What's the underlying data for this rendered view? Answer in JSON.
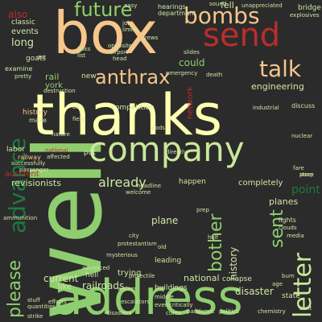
{
  "colors": {
    "background": "#2b2b2b",
    "palette": [
      "#f6c68a",
      "#b92e2b",
      "#8fce6e",
      "#ffffb0",
      "#1e7a3e",
      "#f2a466",
      "#c9e89a",
      "#d0e6a5"
    ]
  },
  "words": [
    {
      "text": "thanks",
      "color": "#ffffb0",
      "size": 70
    },
    {
      "text": "well",
      "color": "#8fce6e",
      "size": 120
    },
    {
      "text": "box",
      "color": "#f6c68a",
      "size": 70
    },
    {
      "text": "address",
      "color": "#8fce6e",
      "size": 60
    },
    {
      "text": "company",
      "color": "#c9e89a",
      "size": 40
    },
    {
      "text": "send",
      "color": "#b92e2b",
      "size": 38
    },
    {
      "text": "bombs",
      "color": "#f6c68a",
      "size": 28
    },
    {
      "text": "future",
      "color": "#8fce6e",
      "size": 24
    },
    {
      "text": "anthrax",
      "color": "#f6c68a",
      "size": 24
    },
    {
      "text": "talk",
      "color": "#f6c68a",
      "size": 26
    },
    {
      "text": "advance",
      "color": "#1e7a3e",
      "size": 28
    },
    {
      "text": "letter",
      "color": "#c9e89a",
      "size": 30
    },
    {
      "text": "please",
      "color": "#8fce6e",
      "size": 22
    },
    {
      "text": "bother",
      "color": "#8fce6e",
      "size": 22
    },
    {
      "text": "sent",
      "color": "#8fce6e",
      "size": 22
    },
    {
      "text": "already",
      "color": "#d0e6a5",
      "size": 16
    },
    {
      "text": "point",
      "color": "#1e7a3e",
      "size": 14
    },
    {
      "text": "also",
      "color": "#b92e2b",
      "size": 12
    },
    {
      "text": "events",
      "color": "#d0e6a5",
      "size": 10
    },
    {
      "text": "long",
      "color": "#d0e6a5",
      "size": 13
    },
    {
      "text": "classic",
      "color": "#d0e6a5",
      "size": 9
    },
    {
      "text": "goats",
      "color": "#d0e6a5",
      "size": 9
    },
    {
      "text": "examine",
      "color": "#d0e6a5",
      "size": 8
    },
    {
      "text": "rail",
      "color": "#8fce6e",
      "size": 11
    },
    {
      "text": "york",
      "color": "#8fce6e",
      "size": 10
    },
    {
      "text": "make",
      "color": "#d0e6a5",
      "size": 8
    },
    {
      "text": "labor",
      "color": "#d0e6a5",
      "size": 9
    },
    {
      "text": "railway",
      "color": "#f6c68a",
      "size": 8
    },
    {
      "text": "accident",
      "color": "#b92e2b",
      "size": 10
    },
    {
      "text": "revisionists",
      "color": "#d0e6a5",
      "size": 11
    },
    {
      "text": "railroads",
      "color": "#d0e6a5",
      "size": 12
    },
    {
      "text": "current",
      "color": "#d0e6a5",
      "size": 12
    },
    {
      "text": "like",
      "color": "#d0e6a5",
      "size": 10
    },
    {
      "text": "plane",
      "color": "#d0e6a5",
      "size": 12
    },
    {
      "text": "history",
      "color": "#d0e6a5",
      "size": 12
    },
    {
      "text": "planes",
      "color": "#d0e6a5",
      "size": 11
    },
    {
      "text": "completely",
      "color": "#d0e6a5",
      "size": 10
    },
    {
      "text": "disaster",
      "color": "#d0e6a5",
      "size": 12
    },
    {
      "text": "national",
      "color": "#d0e6a5",
      "size": 11
    },
    {
      "text": "collapse",
      "color": "#d0e6a5",
      "size": 9
    },
    {
      "text": "engineering",
      "color": "#d0e6a5",
      "size": 11
    },
    {
      "text": "could",
      "color": "#8fce6e",
      "size": 12
    },
    {
      "text": "network",
      "color": "#b92e2b",
      "size": 10
    },
    {
      "text": "competition",
      "color": "#d0e6a5",
      "size": 9
    },
    {
      "text": "new",
      "color": "#d0e6a5",
      "size": 9
    },
    {
      "text": "happen",
      "color": "#d0e6a5",
      "size": 9
    },
    {
      "text": "trying",
      "color": "#d0e6a5",
      "size": 10
    },
    {
      "text": "hell",
      "color": "#d0e6a5",
      "size": 9
    },
    {
      "text": "leading",
      "color": "#d0e6a5",
      "size": 9
    },
    {
      "text": "buildings",
      "color": "#d0e6a5",
      "size": 9
    },
    {
      "text": "put",
      "color": "#d0e6a5",
      "size": 9
    },
    {
      "text": "bridge",
      "color": "#d0e6a5",
      "size": 9
    },
    {
      "text": "explosives",
      "color": "#d0e6a5",
      "size": 7
    },
    {
      "text": "department",
      "color": "#d0e6a5",
      "size": 8
    },
    {
      "text": "hearings",
      "color": "#d0e6a5",
      "size": 8
    },
    {
      "text": "unappreciated",
      "color": "#d0e6a5",
      "size": 7
    },
    {
      "text": "emergency",
      "color": "#d0e6a5",
      "size": 7
    },
    {
      "text": "lights",
      "color": "#d0e6a5",
      "size": 8
    },
    {
      "text": "state",
      "color": "#d0e6a5",
      "size": 9
    },
    {
      "text": "chemistry",
      "color": "#d0e6a5",
      "size": 7
    },
    {
      "text": "fell",
      "color": "#d0e6a5",
      "size": 11
    },
    {
      "text": "sound",
      "color": "#d0e6a5",
      "size": 7
    },
    {
      "text": "history",
      "color": "#f6c68a",
      "size": 9
    },
    {
      "text": "politics",
      "color": "#d0e6a5",
      "size": 7
    },
    {
      "text": "mysterious",
      "color": "#d0e6a5",
      "size": 7
    },
    {
      "text": "advanced",
      "color": "#d0e6a5",
      "size": 7
    },
    {
      "text": "successfully",
      "color": "#d0e6a5",
      "size": 7
    },
    {
      "text": "passenger",
      "color": "#d0e6a5",
      "size": 7
    },
    {
      "text": "industrial",
      "color": "#d0e6a5",
      "size": 7
    },
    {
      "text": "discuss",
      "color": "#d0e6a5",
      "size": 8
    },
    {
      "text": "death",
      "color": "#d0e6a5",
      "size": 7
    },
    {
      "text": "crews",
      "color": "#d0e6a5",
      "size": 7
    },
    {
      "text": "slides",
      "color": "#d0e6a5",
      "size": 7
    },
    {
      "text": "head",
      "color": "#d0e6a5",
      "size": 7
    },
    {
      "text": "airport",
      "color": "#d0e6a5",
      "size": 7
    },
    {
      "text": "folks",
      "color": "#d0e6a5",
      "size": 7
    },
    {
      "text": "list",
      "color": "#d0e6a5",
      "size": 7
    },
    {
      "text": "directly",
      "color": "#d0e6a5",
      "size": 7
    },
    {
      "text": "pods",
      "color": "#d0e6a5",
      "size": 7
    },
    {
      "text": "oil",
      "color": "#d0e6a5",
      "size": 7
    },
    {
      "text": "field",
      "color": "#d0e6a5",
      "size": 7
    },
    {
      "text": "pretty",
      "color": "#d0e6a5",
      "size": 7
    },
    {
      "text": "stuff",
      "color": "#d0e6a5",
      "size": 7
    },
    {
      "text": "quantities",
      "color": "#d0e6a5",
      "size": 7
    },
    {
      "text": "pandemic",
      "color": "#d0e6a5",
      "size": 7
    },
    {
      "text": "strike",
      "color": "#d0e6a5",
      "size": 7
    },
    {
      "text": "built",
      "color": "#d0e6a5",
      "size": 7
    },
    {
      "text": "fare",
      "color": "#d0e6a5",
      "size": 7
    },
    {
      "text": "store",
      "color": "#d0e6a5",
      "size": 7
    },
    {
      "text": "clouds",
      "color": "#d0e6a5",
      "size": 7
    },
    {
      "text": "media",
      "color": "#d0e6a5",
      "size": 7
    },
    {
      "text": "welcome",
      "color": "#d0e6a5",
      "size": 7
    },
    {
      "text": "headline",
      "color": "#d0e6a5",
      "size": 7
    },
    {
      "text": "projectile",
      "color": "#d0e6a5",
      "size": 7
    },
    {
      "text": "escalators",
      "color": "#d0e6a5",
      "size": 7
    },
    {
      "text": "waters",
      "color": "#d0e6a5",
      "size": 7
    },
    {
      "text": "middle",
      "color": "#d0e6a5",
      "size": 7
    },
    {
      "text": "even",
      "color": "#d0e6a5",
      "size": 7
    },
    {
      "text": "critically",
      "color": "#d0e6a5",
      "size": 7
    },
    {
      "text": "cures",
      "color": "#d0e6a5",
      "size": 7
    },
    {
      "text": "protestantism",
      "color": "#d0e6a5",
      "size": 7
    },
    {
      "text": "city",
      "color": "#d0e6a5",
      "size": 7
    },
    {
      "text": "efforts",
      "color": "#d0e6a5",
      "size": 7
    },
    {
      "text": "ammunition",
      "color": "#d0e6a5",
      "size": 7
    },
    {
      "text": "nuclear",
      "color": "#d0e6a5",
      "size": 7
    },
    {
      "text": "poop",
      "color": "#d0e6a5",
      "size": 7
    },
    {
      "text": "nature",
      "color": "#d0e6a5",
      "size": 7
    },
    {
      "text": "destruction",
      "color": "#d0e6a5",
      "size": 7
    },
    {
      "text": "opposite",
      "color": "#d0e6a5",
      "size": 7
    },
    {
      "text": "limits",
      "color": "#d0e6a5",
      "size": 7
    },
    {
      "text": "job",
      "color": "#d0e6a5",
      "size": 7
    },
    {
      "text": "easy",
      "color": "#d0e6a5",
      "size": 7
    },
    {
      "text": "act",
      "color": "#d0e6a5",
      "size": 7
    },
    {
      "text": "half",
      "color": "#d0e6a5",
      "size": 7
    },
    {
      "text": "old",
      "color": "#d0e6a5",
      "size": 7
    },
    {
      "text": "bum",
      "color": "#d0e6a5",
      "size": 7
    },
    {
      "text": "age",
      "color": "#d0e6a5",
      "size": 7
    },
    {
      "text": "disasters",
      "color": "#d0e6a5",
      "size": 7
    },
    {
      "text": "affected",
      "color": "#d0e6a5",
      "size": 7
    },
    {
      "text": "national",
      "color": "#b92e2b",
      "size": 7
    },
    {
      "text": "prep",
      "color": "#d0e6a5",
      "size": 7
    }
  ]
}
